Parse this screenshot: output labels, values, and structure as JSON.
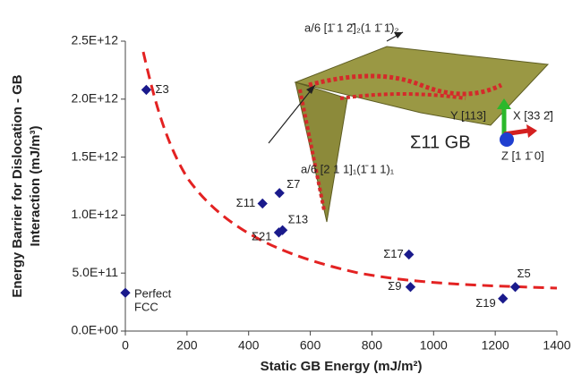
{
  "chart_data": {
    "type": "scatter",
    "x_label": "Static GB Energy (mJ/m²)",
    "y_label": [
      "Energy Barrier for Dislocation - GB",
      "Interaction (mJ/m³)"
    ],
    "x": [
      0,
      68,
      445,
      500,
      510,
      498,
      920,
      925,
      1225,
      1265
    ],
    "values": [
      330000000000,
      2080000000000,
      1100000000000,
      1190000000000,
      870000000000,
      850000000000,
      660000000000,
      380000000000,
      280000000000,
      380000000000
    ],
    "labels": [
      [
        "Perfect",
        "FCC"
      ],
      "Σ3",
      "Σ11",
      "Σ7",
      "Σ13",
      "Σ21",
      "Σ17",
      "Σ9",
      "Σ19",
      "Σ5"
    ],
    "color": "#1a1a8c",
    "fit_color": "#e32222",
    "xlim": [
      0,
      1400
    ],
    "xticks": [
      0,
      200,
      400,
      600,
      800,
      1000,
      1200,
      1400
    ],
    "ylim": [
      0,
      2500000000000
    ],
    "yticks": [
      {
        "value": 0,
        "label": "0.0E+00"
      },
      {
        "value": 500000000000,
        "label": "5.0E+11"
      },
      {
        "value": 1000000000000,
        "label": "1.0E+12"
      },
      {
        "value": 1500000000000,
        "label": "1.5E+12"
      },
      {
        "value": 2000000000000,
        "label": "2.0E+12"
      },
      {
        "value": 2500000000000,
        "label": "2.5E+12"
      }
    ],
    "inset": {
      "title": "Σ11 GB",
      "burgers_top": "a/6 [1̄ 1 2̄]₂(1 1̄ 1̄)₂",
      "burgers_bottom": "a/6 [2 1 1]₁(1̄ 1 1)₁",
      "axis_y": "Y [113]",
      "axis_x": "X [33 2̄]",
      "axis_z": "Z [1 1̄ 0]"
    }
  }
}
